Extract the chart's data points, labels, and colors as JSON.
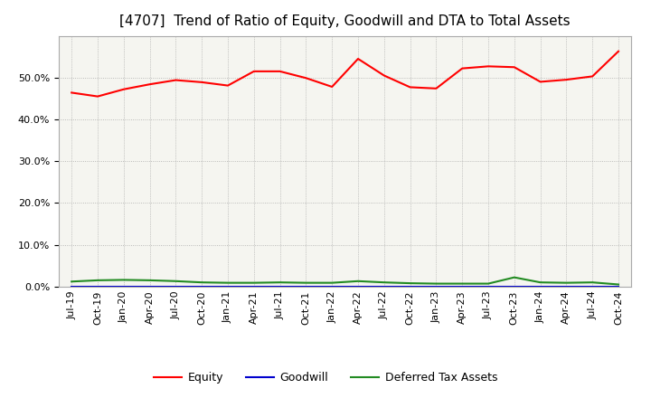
{
  "title": "[4707]  Trend of Ratio of Equity, Goodwill and DTA to Total Assets",
  "x_labels": [
    "Jul-19",
    "Oct-19",
    "Jan-20",
    "Apr-20",
    "Jul-20",
    "Oct-20",
    "Jan-21",
    "Apr-21",
    "Jul-21",
    "Oct-21",
    "Jan-22",
    "Apr-22",
    "Jul-22",
    "Oct-22",
    "Jan-23",
    "Apr-23",
    "Jul-23",
    "Oct-23",
    "Jan-24",
    "Apr-24",
    "Jul-24",
    "Oct-24"
  ],
  "equity": [
    0.464,
    0.455,
    0.472,
    0.484,
    0.494,
    0.489,
    0.481,
    0.515,
    0.515,
    0.499,
    0.478,
    0.545,
    0.505,
    0.477,
    0.474,
    0.522,
    0.527,
    0.525,
    0.49,
    0.495,
    0.503,
    0.563
  ],
  "goodwill": [
    0.0,
    0.0,
    0.0,
    0.0,
    0.0,
    0.0,
    0.0,
    0.0,
    0.0,
    0.0,
    0.0,
    0.0,
    0.0,
    0.0,
    0.0,
    0.0,
    0.0,
    0.0,
    0.0,
    0.0,
    0.0,
    0.0
  ],
  "dta": [
    0.012,
    0.015,
    0.016,
    0.015,
    0.013,
    0.01,
    0.009,
    0.009,
    0.01,
    0.009,
    0.009,
    0.013,
    0.01,
    0.008,
    0.007,
    0.007,
    0.007,
    0.022,
    0.01,
    0.009,
    0.01,
    0.005
  ],
  "equity_color": "#FF0000",
  "goodwill_color": "#0000CD",
  "dta_color": "#228B22",
  "background_color": "#FFFFFF",
  "plot_bg_color": "#F5F5F0",
  "grid_color": "#999999",
  "ylim": [
    0.0,
    0.6
  ],
  "yticks": [
    0.0,
    0.1,
    0.2,
    0.3,
    0.4,
    0.5
  ],
  "legend_labels": [
    "Equity",
    "Goodwill",
    "Deferred Tax Assets"
  ],
  "title_fontsize": 11,
  "axis_fontsize": 8,
  "legend_fontsize": 9
}
